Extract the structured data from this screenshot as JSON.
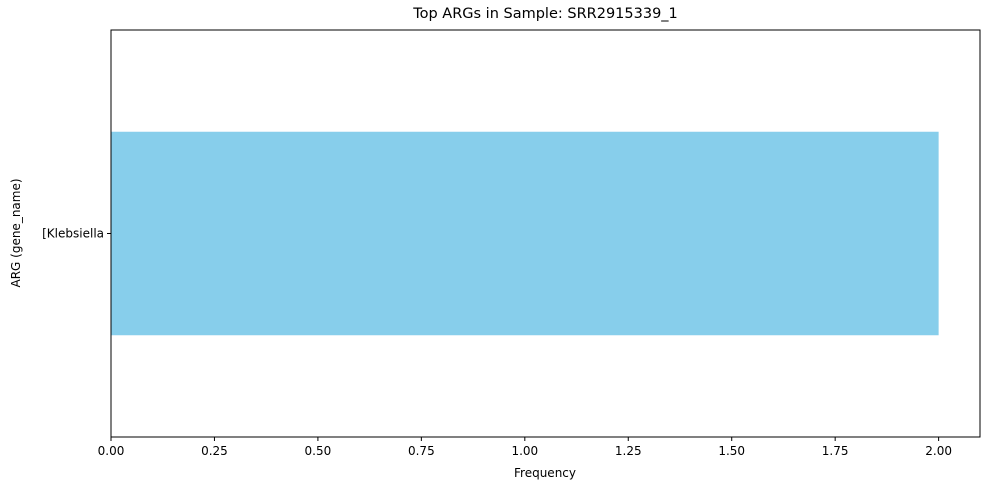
{
  "chart_data": {
    "type": "bar",
    "orientation": "horizontal",
    "title": "Top ARGs in Sample: SRR2915339_1",
    "xlabel": "Frequency",
    "ylabel": "ARG (gene_name)",
    "categories": [
      "[Klebsiella"
    ],
    "values": [
      2
    ],
    "xlim": [
      0,
      2.1
    ],
    "xticks": [
      0.0,
      0.25,
      0.5,
      0.75,
      1.0,
      1.25,
      1.5,
      1.75,
      2.0
    ],
    "xtick_labels": [
      "0.00",
      "0.25",
      "0.50",
      "0.75",
      "1.00",
      "1.25",
      "1.50",
      "1.75",
      "2.00"
    ],
    "grid": false,
    "bar_color": "#87CEEB"
  }
}
